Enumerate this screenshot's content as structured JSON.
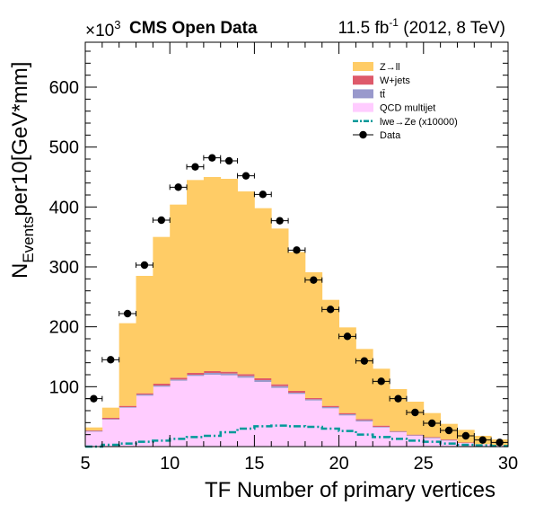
{
  "chart_data": {
    "type": "bar",
    "title": "CMS Open Data",
    "lumi_label": "11.5 fb",
    "lumi_sup": "-1",
    "energy_label": " (2012, 8 TeV)",
    "multiplier_base": "×10",
    "multiplier_exp": "3",
    "xlabel": "TF Number of primary vertices",
    "ylabel_main": "N",
    "ylabel_sub": "Events",
    "ylabel_rest": "per10[GeV*mm]",
    "xlim": [
      5,
      30
    ],
    "ylim": [
      0,
      675
    ],
    "xticks": [
      5,
      10,
      15,
      20,
      25,
      30
    ],
    "yticks": [
      100,
      200,
      300,
      400,
      500,
      600
    ],
    "bins": [
      5,
      6,
      7,
      8,
      9,
      10,
      11,
      12,
      13,
      14,
      15,
      16,
      17,
      18,
      19,
      20,
      21,
      22,
      23,
      24,
      25,
      26,
      27,
      28,
      29,
      30
    ],
    "stack": [
      {
        "name": "QCD multijet",
        "color": "#ffccff",
        "values": [
          25,
          45,
          65,
          85,
          100,
          110,
          118,
          120,
          119,
          115,
          108,
          98,
          88,
          77,
          64,
          52,
          42,
          32,
          24,
          18,
          14,
          10,
          6,
          4,
          2
        ]
      },
      {
        "name": "tt̄",
        "color": "#9999cc",
        "values": [
          1,
          1,
          1,
          2,
          2,
          2,
          2,
          3,
          3,
          3,
          3,
          3,
          2,
          2,
          2,
          2,
          2,
          1,
          1,
          1,
          1,
          1,
          0,
          0,
          0
        ]
      },
      {
        "name": "W+jets",
        "color": "#de5a6a",
        "values": [
          1,
          2,
          2,
          2,
          3,
          3,
          3,
          3,
          3,
          3,
          3,
          3,
          3,
          2,
          2,
          2,
          2,
          2,
          1,
          1,
          1,
          1,
          1,
          0,
          0
        ]
      },
      {
        "name": "Z→ll",
        "color": "#ffcc66",
        "values": [
          5,
          17,
          138,
          196,
          245,
          289,
          322,
          324,
          322,
          305,
          284,
          260,
          232,
          210,
          177,
          143,
          117,
          95,
          70,
          55,
          40,
          26,
          21,
          14,
          10
        ]
      }
    ],
    "signal": {
      "name": "lwe→Ze (x10000)",
      "color": "#009999",
      "values": [
        0,
        3,
        5,
        8,
        10,
        13,
        16,
        18,
        24,
        30,
        34,
        35,
        34,
        33,
        30,
        26,
        20,
        16,
        13,
        10,
        8,
        5,
        3,
        2,
        1
      ]
    },
    "data": {
      "name": "Data",
      "color": "#000000",
      "x": [
        5.5,
        6.5,
        7.5,
        8.5,
        9.5,
        10.5,
        11.5,
        12.5,
        13.5,
        14.5,
        15.5,
        16.5,
        17.5,
        18.5,
        19.5,
        20.5,
        21.5,
        22.5,
        23.5,
        24.5,
        25.5,
        26.5,
        27.5,
        28.5,
        29.5
      ],
      "y": [
        80,
        145,
        222,
        303,
        378,
        433,
        467,
        482,
        477,
        452,
        421,
        377,
        328,
        278,
        229,
        184,
        143,
        109,
        80,
        57,
        39,
        27,
        18,
        11,
        7
      ]
    },
    "legend": [
      {
        "label": "Z→ll",
        "kind": "box",
        "color": "#ffcc66"
      },
      {
        "label": "W+jets",
        "kind": "box",
        "color": "#de5a6a"
      },
      {
        "label": "tt̄",
        "kind": "box",
        "color": "#9999cc"
      },
      {
        "label": "QCD multijet",
        "kind": "box",
        "color": "#ffccff"
      },
      {
        "label": "lwe→Ze (x10000)",
        "kind": "dashline",
        "color": "#009999"
      },
      {
        "label": "Data",
        "kind": "marker",
        "color": "#000000"
      }
    ],
    "legend_position": "top-right",
    "grid": false
  }
}
